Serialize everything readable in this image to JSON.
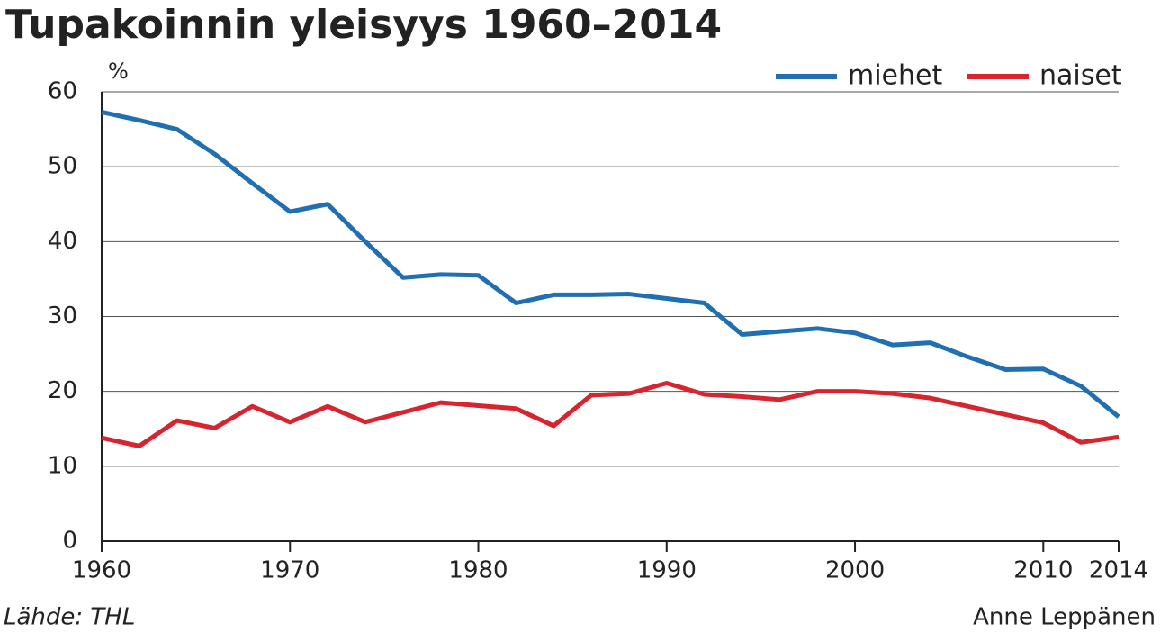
{
  "chart_data": {
    "type": "line",
    "title": "Tupakoinnin yleisyys 1960–2014",
    "y_label": "%",
    "source": "Lähde: THL",
    "author": "Anne Leppänen",
    "x": [
      1960,
      1962,
      1964,
      1966,
      1968,
      1970,
      1972,
      1974,
      1976,
      1978,
      1980,
      1982,
      1984,
      1986,
      1988,
      1990,
      1992,
      1994,
      1996,
      1998,
      2000,
      2002,
      2004,
      2006,
      2008,
      2010,
      2012,
      2014
    ],
    "series": [
      {
        "name": "miehet",
        "color": "#1f6fb2",
        "values": [
          57.3,
          56.2,
          55.0,
          51.7,
          47.8,
          44.0,
          45.0,
          40.0,
          35.2,
          35.6,
          35.5,
          31.8,
          32.9,
          32.9,
          33.0,
          32.4,
          31.8,
          27.6,
          28.0,
          28.4,
          27.8,
          26.2,
          26.5,
          24.6,
          22.9,
          23.0,
          20.7,
          16.6
        ]
      },
      {
        "name": "naiset",
        "color": "#d7252f",
        "values": [
          13.8,
          12.7,
          16.1,
          15.1,
          18.0,
          15.9,
          18.0,
          15.9,
          17.2,
          18.5,
          18.1,
          17.7,
          15.4,
          19.5,
          19.7,
          21.1,
          19.6,
          19.3,
          18.9,
          20.0,
          20.0,
          19.7,
          19.1,
          18.0,
          16.9,
          15.8,
          13.2,
          13.9
        ]
      }
    ],
    "xlim": [
      1960,
      2014
    ],
    "xticks": [
      1960,
      1970,
      1980,
      1990,
      2000,
      2010,
      2014
    ],
    "ylim": [
      0,
      60
    ],
    "yticks": [
      0,
      10,
      20,
      30,
      40,
      50,
      60
    ],
    "grid": true,
    "legend": "top-right"
  }
}
